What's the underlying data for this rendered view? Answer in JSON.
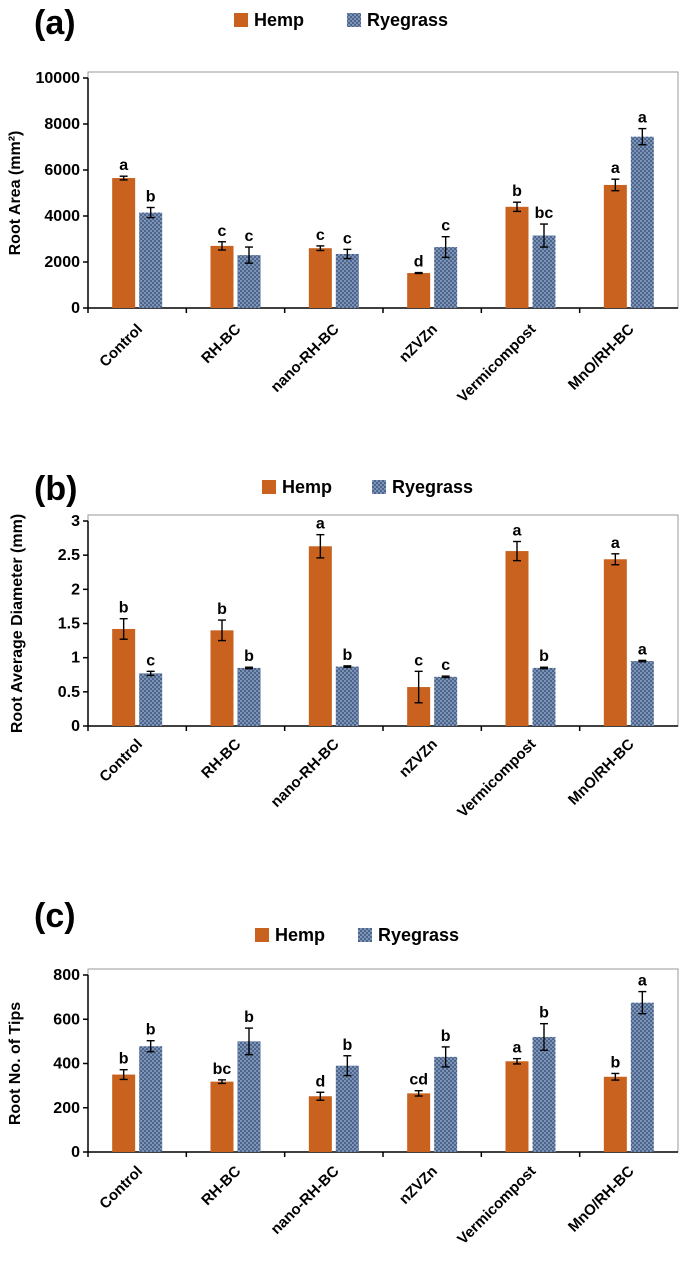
{
  "colors": {
    "hemp": "#C8621E",
    "ryegrass": "#4A6590",
    "ryegrass_dots": "#cfd8e6"
  },
  "legend": {
    "hemp": "Hemp",
    "ryegrass": "Ryegrass"
  },
  "chart_data": [
    {
      "panel": "(a)",
      "type": "bar",
      "title": "",
      "xlabel": "",
      "ylabel": "Root Area (mm²)",
      "ylim": [
        0,
        10000
      ],
      "yticks": [
        0,
        2000,
        4000,
        6000,
        8000,
        10000
      ],
      "ytick_labels": [
        "0",
        "2000",
        "4000",
        "6000",
        "8000",
        "10000"
      ],
      "categories": [
        "Control",
        "RH-BC",
        "nano-RH-BC",
        "nZVZn",
        "Vermicompost",
        "MnO/RH-BC"
      ],
      "series": [
        {
          "name": "Hemp",
          "values": [
            5650,
            2700,
            2600,
            1520,
            4400,
            5350
          ],
          "errors": [
            80,
            180,
            100,
            20,
            200,
            250
          ],
          "labels": [
            "a",
            "c",
            "c",
            "d",
            "b",
            "a"
          ]
        },
        {
          "name": "Ryegrass",
          "values": [
            4150,
            2300,
            2350,
            2650,
            3150,
            7450
          ],
          "errors": [
            220,
            350,
            200,
            450,
            500,
            350
          ],
          "labels": [
            "b",
            "c",
            "c",
            "c",
            "bc",
            "a"
          ]
        }
      ]
    },
    {
      "panel": "(b)",
      "type": "bar",
      "title": "",
      "xlabel": "",
      "ylabel": "Root Average Diameter (mm)",
      "ylim": [
        0,
        3
      ],
      "yticks": [
        0,
        0.5,
        1,
        1.5,
        2,
        2.5,
        3
      ],
      "ytick_labels": [
        "0",
        "0.5",
        "1",
        "1.5",
        "2",
        "2.5",
        "3"
      ],
      "categories": [
        "Control",
        "RH-BC",
        "nano-RH-BC",
        "nZVZn",
        "Vermicompost",
        "MnO/RH-BC"
      ],
      "series": [
        {
          "name": "Hemp",
          "values": [
            1.42,
            1.4,
            2.63,
            0.57,
            2.56,
            2.44
          ],
          "errors": [
            0.15,
            0.15,
            0.17,
            0.23,
            0.14,
            0.08
          ],
          "labels": [
            "b",
            "b",
            "a",
            "c",
            "a",
            "a"
          ]
        },
        {
          "name": "Ryegrass",
          "values": [
            0.77,
            0.85,
            0.87,
            0.72,
            0.85,
            0.95
          ],
          "errors": [
            0.03,
            0.01,
            0.01,
            0.01,
            0.01,
            0.01
          ],
          "labels": [
            "c",
            "b",
            "b",
            "c",
            "b",
            "a"
          ]
        }
      ]
    },
    {
      "panel": "(c)",
      "type": "bar",
      "title": "",
      "xlabel": "",
      "ylabel": "Root No. of Tips",
      "ylim": [
        0,
        800
      ],
      "yticks": [
        0,
        200,
        400,
        600,
        800
      ],
      "ytick_labels": [
        "0",
        "200",
        "400",
        "600",
        "800"
      ],
      "categories": [
        "Control",
        "RH-BC",
        "nano-RH-BC",
        "nZVZn",
        "Vermicompost",
        "MnO/RH-BC"
      ],
      "series": [
        {
          "name": "Hemp",
          "values": [
            350,
            318,
            252,
            265,
            410,
            340
          ],
          "errors": [
            22,
            8,
            18,
            12,
            12,
            15
          ],
          "labels": [
            "b",
            "bc",
            "d",
            "cd",
            "a",
            "b"
          ]
        },
        {
          "name": "Ryegrass",
          "values": [
            478,
            500,
            390,
            430,
            520,
            675
          ],
          "errors": [
            25,
            60,
            45,
            45,
            60,
            50
          ],
          "labels": [
            "b",
            "b",
            "b",
            "b",
            "b",
            "a"
          ]
        }
      ]
    }
  ]
}
